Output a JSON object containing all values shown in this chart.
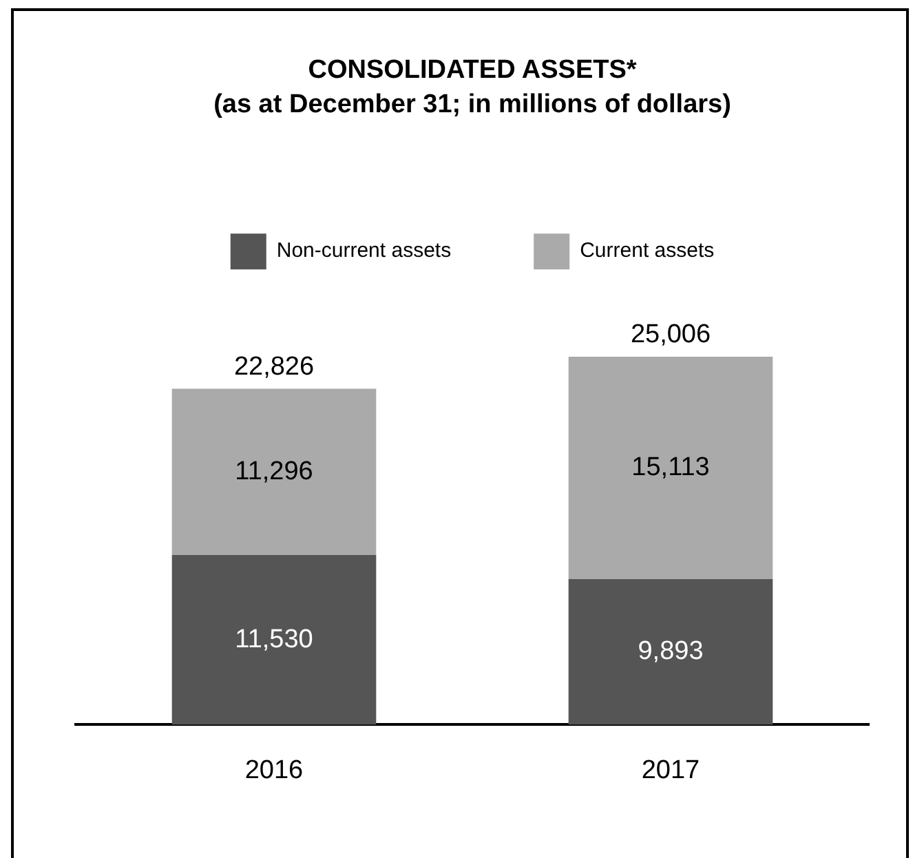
{
  "chart_data": {
    "type": "bar",
    "title": "CONSOLIDATED ASSETS*",
    "subtitle": "(as at December 31; in millions of dollars)",
    "categories": [
      "2016",
      "2017"
    ],
    "series": [
      {
        "name": "Non-current assets",
        "color": "#555555",
        "values": [
          11530,
          9893
        ],
        "value_labels": [
          "11,530",
          "9,893"
        ]
      },
      {
        "name": "Current assets",
        "color": "#aaaaaa",
        "values": [
          11296,
          15113
        ],
        "value_labels": [
          "11,296",
          "15,113"
        ]
      }
    ],
    "stacked": true,
    "totals": [
      "22,826",
      "25,006"
    ],
    "tick_labels": "x",
    "grid": false,
    "legend": "top"
  }
}
